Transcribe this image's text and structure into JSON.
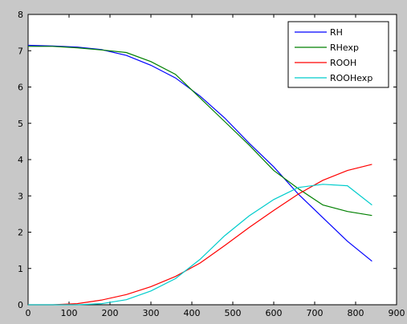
{
  "chart_data": {
    "type": "line",
    "title": "",
    "xlabel": "",
    "ylabel": "",
    "xlim": [
      0,
      900
    ],
    "ylim": [
      0,
      8
    ],
    "xticks": [
      0,
      100,
      200,
      300,
      400,
      500,
      600,
      700,
      800,
      900
    ],
    "yticks": [
      0,
      1,
      2,
      3,
      4,
      5,
      6,
      7,
      8
    ],
    "grid": false,
    "legend_position": "top-right",
    "background": "#c8c8c8",
    "plot_background": "#ffffff",
    "series": [
      {
        "name": "RH",
        "color": "#0000ff",
        "x": [
          0,
          60,
          120,
          180,
          240,
          300,
          360,
          420,
          480,
          540,
          600,
          660,
          720,
          780,
          840
        ],
        "y": [
          7.15,
          7.13,
          7.1,
          7.03,
          6.87,
          6.6,
          6.25,
          5.75,
          5.15,
          4.45,
          3.8,
          3.05,
          2.4,
          1.75,
          1.2
        ]
      },
      {
        "name": "RHexp",
        "color": "#008000",
        "x": [
          0,
          60,
          120,
          180,
          240,
          300,
          360,
          420,
          480,
          540,
          600,
          660,
          720,
          780,
          840
        ],
        "y": [
          7.12,
          7.12,
          7.08,
          7.02,
          6.95,
          6.7,
          6.35,
          5.7,
          5.05,
          4.4,
          3.7,
          3.2,
          2.75,
          2.57,
          2.46
        ]
      },
      {
        "name": "ROOH",
        "color": "#ff0000",
        "x": [
          0,
          60,
          120,
          180,
          240,
          300,
          360,
          420,
          480,
          540,
          600,
          660,
          720,
          780,
          840
        ],
        "y": [
          0.0,
          0.0,
          0.03,
          0.13,
          0.28,
          0.5,
          0.78,
          1.15,
          1.63,
          2.13,
          2.6,
          3.05,
          3.43,
          3.7,
          3.87
        ]
      },
      {
        "name": "ROOHexp",
        "color": "#00cccc",
        "x": [
          0,
          60,
          120,
          180,
          240,
          300,
          360,
          420,
          480,
          540,
          600,
          660,
          720,
          780,
          840
        ],
        "y": [
          0.0,
          0.0,
          0.0,
          0.03,
          0.14,
          0.38,
          0.72,
          1.25,
          1.9,
          2.45,
          2.9,
          3.23,
          3.32,
          3.28,
          2.75
        ]
      }
    ]
  }
}
